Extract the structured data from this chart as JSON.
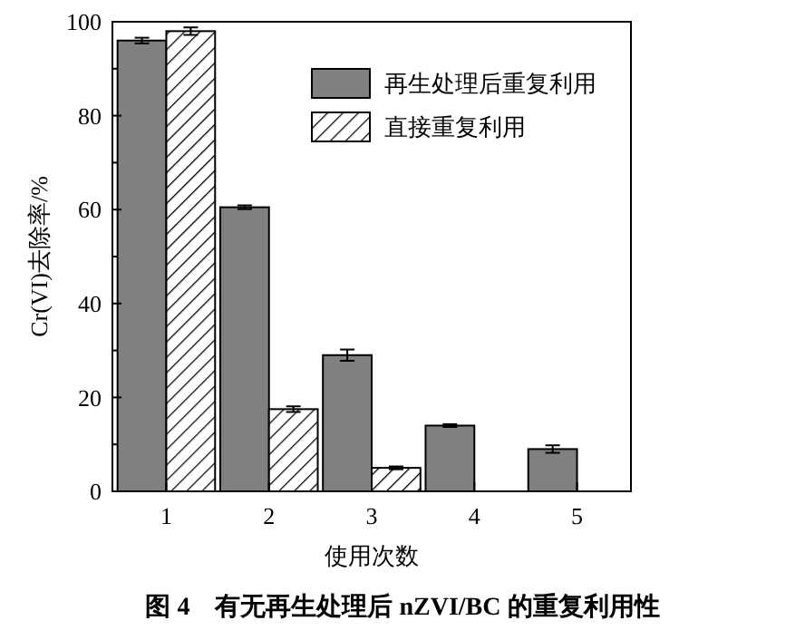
{
  "chart_data": {
    "type": "bar",
    "xlabel": "使用次数",
    "ylabel": "Cr(VI)去除率/%",
    "title": "图 4　有无再生处理后 nZVI/BC 的重复利用性",
    "categories": [
      "1",
      "2",
      "3",
      "4",
      "5"
    ],
    "series": [
      {
        "name": "再生处理后重复利用",
        "color": "#808080",
        "values": [
          96,
          60.5,
          29,
          14,
          9
        ],
        "errors": [
          0.6,
          0.4,
          1.2,
          0.3,
          0.8
        ]
      },
      {
        "name": "直接重复利用",
        "color": "#000000",
        "values": [
          98,
          17.5,
          5,
          null,
          null
        ],
        "errors": [
          0.8,
          0.6,
          0.3,
          null,
          null
        ]
      }
    ],
    "ylim": [
      0,
      100
    ],
    "yticks": [
      0,
      20,
      40,
      60,
      80,
      100
    ],
    "grid": false,
    "legend": "top right"
  }
}
